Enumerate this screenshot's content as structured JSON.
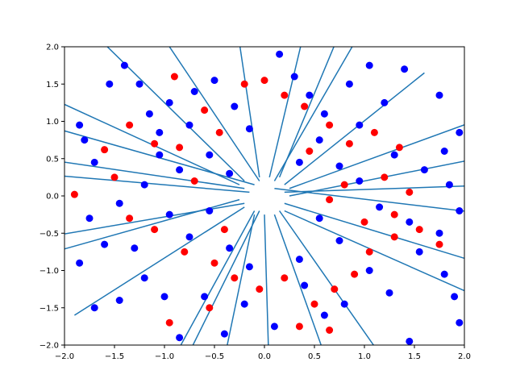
{
  "chart_data": {
    "type": "scatter",
    "title": "",
    "xlabel": "",
    "ylabel": "",
    "xlim": [
      -2.0,
      2.0
    ],
    "ylim": [
      -2.0,
      2.0
    ],
    "xticks": [
      -2.0,
      -1.5,
      -1.0,
      -0.5,
      0.0,
      0.5,
      1.0,
      1.5,
      2.0
    ],
    "yticks": [
      -2.0,
      -1.5,
      -1.0,
      -0.5,
      0.0,
      0.5,
      1.0,
      1.5,
      2.0
    ],
    "xtick_labels": [
      "−2.0",
      "−1.5",
      "−1.0",
      "−0.5",
      "0.0",
      "0.5",
      "1.0",
      "1.5",
      "2.0"
    ],
    "ytick_labels": [
      "−2.0",
      "−1.5",
      "−1.0",
      "−0.5",
      "0.0",
      "0.5",
      "1.0",
      "1.5",
      "2.0"
    ],
    "grid": false,
    "legend": "none",
    "colors": {
      "line": "#1f77b4",
      "blue_points": "#0000ff",
      "red_points": "#ff0000",
      "axes": "#000000"
    },
    "lines": [
      {
        "x1": -0.05,
        "y1": 0.2,
        "x2": -1.15,
        "y2": 2.4
      },
      {
        "x1": -0.1,
        "y1": 0.15,
        "x2": -2.6,
        "y2": 1.1
      },
      {
        "x1": 0.1,
        "y1": 0.1,
        "x2": 2.6,
        "y2": -0.3
      },
      {
        "x1": 0.2,
        "y1": 0.15,
        "x2": 1.6,
        "y2": 1.65
      },
      {
        "x1": -0.2,
        "y1": -0.1,
        "x2": -2.4,
        "y2": -0.6
      },
      {
        "x1": -0.1,
        "y1": -0.2,
        "x2": -1.0,
        "y2": -2.4
      },
      {
        "x1": 0.0,
        "y1": -0.25,
        "x2": 0.05,
        "y2": -2.5
      },
      {
        "x1": 0.15,
        "y1": -0.2,
        "x2": 1.3,
        "y2": -2.4
      },
      {
        "x1": 0.25,
        "y1": 0.0,
        "x2": 2.5,
        "y2": 0.6
      },
      {
        "x1": -0.15,
        "y1": 0.05,
        "x2": -2.3,
        "y2": 0.3
      },
      {
        "x1": 0.05,
        "y1": 0.25,
        "x2": 0.45,
        "y2": 2.5
      },
      {
        "x1": -0.2,
        "y1": 0.2,
        "x2": -1.8,
        "y2": 2.3
      },
      {
        "x1": 0.2,
        "y1": -0.1,
        "x2": 2.4,
        "y2": -1.0
      },
      {
        "x1": -0.2,
        "y1": -0.15,
        "x2": -1.9,
        "y2": -1.6
      },
      {
        "x1": 0.1,
        "y1": 0.2,
        "x2": 1.05,
        "y2": 2.4
      },
      {
        "x1": -0.05,
        "y1": 0.25,
        "x2": -0.3,
        "y2": 2.5
      },
      {
        "x1": 0.1,
        "y1": -0.25,
        "x2": 0.7,
        "y2": -2.5
      },
      {
        "x1": -0.25,
        "y1": -0.05,
        "x2": -2.5,
        "y2": -0.9
      },
      {
        "x1": 0.2,
        "y1": 0.05,
        "x2": 2.4,
        "y2": 0.15
      },
      {
        "x1": -0.2,
        "y1": 0.1,
        "x2": -2.5,
        "y2": 0.55
      },
      {
        "x1": 0.25,
        "y1": 0.1,
        "x2": 2.3,
        "y2": 1.1
      },
      {
        "x1": -0.1,
        "y1": -0.25,
        "x2": -0.45,
        "y2": -2.5
      },
      {
        "x1": 0.15,
        "y1": 0.25,
        "x2": 0.85,
        "y2": 2.5
      },
      {
        "x1": -0.25,
        "y1": 0.15,
        "x2": -2.2,
        "y2": 1.35
      },
      {
        "x1": 0.2,
        "y1": -0.2,
        "x2": 2.3,
        "y2": -1.45
      },
      {
        "x1": -0.05,
        "y1": -0.2,
        "x2": -0.9,
        "y2": -2.5
      }
    ],
    "blue_points": [
      {
        "x": -1.85,
        "y": 0.95
      },
      {
        "x": -1.8,
        "y": 0.75
      },
      {
        "x": -1.7,
        "y": 0.45
      },
      {
        "x": -1.55,
        "y": 1.5
      },
      {
        "x": -1.4,
        "y": 1.75
      },
      {
        "x": -1.25,
        "y": 1.5
      },
      {
        "x": -1.15,
        "y": 1.1
      },
      {
        "x": -1.05,
        "y": 0.85
      },
      {
        "x": -0.95,
        "y": 1.25
      },
      {
        "x": -0.85,
        "y": 0.35
      },
      {
        "x": -0.7,
        "y": 1.4
      },
      {
        "x": -0.5,
        "y": 1.55
      },
      {
        "x": -0.3,
        "y": 1.2
      },
      {
        "x": -0.15,
        "y": 0.9
      },
      {
        "x": 0.15,
        "y": 1.9
      },
      {
        "x": 0.3,
        "y": 1.6
      },
      {
        "x": 0.45,
        "y": 1.35
      },
      {
        "x": 0.6,
        "y": 1.1
      },
      {
        "x": 0.85,
        "y": 1.5
      },
      {
        "x": 1.05,
        "y": 1.75
      },
      {
        "x": 1.4,
        "y": 1.7
      },
      {
        "x": 1.75,
        "y": 1.35
      },
      {
        "x": 1.95,
        "y": 0.85
      },
      {
        "x": 1.8,
        "y": 0.6
      },
      {
        "x": 1.6,
        "y": 0.35
      },
      {
        "x": 1.85,
        "y": 0.15
      },
      {
        "x": 1.95,
        "y": -0.2
      },
      {
        "x": 1.75,
        "y": -0.5
      },
      {
        "x": 1.55,
        "y": -0.75
      },
      {
        "x": 1.8,
        "y": -1.05
      },
      {
        "x": 1.9,
        "y": -1.35
      },
      {
        "x": 1.95,
        "y": -1.7
      },
      {
        "x": 1.45,
        "y": -1.95
      },
      {
        "x": 1.25,
        "y": -1.3
      },
      {
        "x": 1.05,
        "y": -1.0
      },
      {
        "x": 0.8,
        "y": -1.45
      },
      {
        "x": 0.6,
        "y": -1.6
      },
      {
        "x": 0.4,
        "y": -1.2
      },
      {
        "x": 0.1,
        "y": -1.75
      },
      {
        "x": -0.2,
        "y": -1.45
      },
      {
        "x": -0.4,
        "y": -1.85
      },
      {
        "x": -0.6,
        "y": -1.35
      },
      {
        "x": -0.85,
        "y": -1.9
      },
      {
        "x": -1.0,
        "y": -1.35
      },
      {
        "x": -1.2,
        "y": -1.1
      },
      {
        "x": -1.45,
        "y": -1.4
      },
      {
        "x": -1.7,
        "y": -1.5
      },
      {
        "x": -1.85,
        "y": -0.9
      },
      {
        "x": -1.6,
        "y": -0.65
      },
      {
        "x": -1.75,
        "y": -0.3
      },
      {
        "x": -1.45,
        "y": -0.1
      },
      {
        "x": -1.2,
        "y": 0.15
      },
      {
        "x": -0.95,
        "y": -0.25
      },
      {
        "x": -0.75,
        "y": -0.55
      },
      {
        "x": -0.55,
        "y": -0.2
      },
      {
        "x": -0.35,
        "y": -0.7
      },
      {
        "x": -0.55,
        "y": 0.55
      },
      {
        "x": -0.35,
        "y": 0.3
      },
      {
        "x": 0.35,
        "y": 0.45
      },
      {
        "x": 0.55,
        "y": 0.75
      },
      {
        "x": 0.75,
        "y": 0.4
      },
      {
        "x": 0.95,
        "y": 0.2
      },
      {
        "x": 1.15,
        "y": -0.15
      },
      {
        "x": 1.3,
        "y": 0.55
      },
      {
        "x": 0.55,
        "y": -0.3
      },
      {
        "x": 0.75,
        "y": -0.6
      },
      {
        "x": 0.35,
        "y": -0.85
      },
      {
        "x": -0.15,
        "y": -0.95
      },
      {
        "x": 0.95,
        "y": 0.95
      },
      {
        "x": -0.75,
        "y": 0.95
      },
      {
        "x": 1.2,
        "y": 1.25
      },
      {
        "x": -1.3,
        "y": -0.7
      },
      {
        "x": 1.45,
        "y": -0.35
      },
      {
        "x": -1.05,
        "y": 0.55
      }
    ],
    "red_points": [
      {
        "x": -1.9,
        "y": 0.02
      },
      {
        "x": -1.6,
        "y": 0.62
      },
      {
        "x": -1.35,
        "y": 0.95
      },
      {
        "x": -1.1,
        "y": 0.7
      },
      {
        "x": -0.9,
        "y": 1.6
      },
      {
        "x": -0.6,
        "y": 1.15
      },
      {
        "x": -0.45,
        "y": 0.85
      },
      {
        "x": -0.2,
        "y": 1.5
      },
      {
        "x": 0.0,
        "y": 1.55
      },
      {
        "x": 0.2,
        "y": 1.35
      },
      {
        "x": 0.4,
        "y": 1.2
      },
      {
        "x": 0.65,
        "y": 0.95
      },
      {
        "x": 0.85,
        "y": 0.7
      },
      {
        "x": 1.1,
        "y": 0.85
      },
      {
        "x": 1.35,
        "y": 0.65
      },
      {
        "x": 1.2,
        "y": 0.25
      },
      {
        "x": 1.45,
        "y": 0.05
      },
      {
        "x": 1.3,
        "y": -0.25
      },
      {
        "x": 1.55,
        "y": -0.45
      },
      {
        "x": 1.75,
        "y": -0.65
      },
      {
        "x": 1.3,
        "y": -0.55
      },
      {
        "x": 1.05,
        "y": -0.75
      },
      {
        "x": 0.9,
        "y": -1.05
      },
      {
        "x": 0.7,
        "y": -1.25
      },
      {
        "x": 0.5,
        "y": -1.45
      },
      {
        "x": 0.35,
        "y": -1.75
      },
      {
        "x": 0.65,
        "y": -1.8
      },
      {
        "x": 0.2,
        "y": -1.1
      },
      {
        "x": -0.05,
        "y": -1.25
      },
      {
        "x": -0.3,
        "y": -1.1
      },
      {
        "x": -0.55,
        "y": -1.5
      },
      {
        "x": -0.5,
        "y": -0.9
      },
      {
        "x": -0.8,
        "y": -0.75
      },
      {
        "x": -0.95,
        "y": -1.7
      },
      {
        "x": -1.1,
        "y": -0.45
      },
      {
        "x": -1.35,
        "y": -0.3
      },
      {
        "x": -1.5,
        "y": 0.25
      },
      {
        "x": -0.7,
        "y": 0.2
      },
      {
        "x": -0.85,
        "y": 0.65
      },
      {
        "x": 0.8,
        "y": 0.15
      },
      {
        "x": 0.65,
        "y": -0.05
      },
      {
        "x": 1.0,
        "y": -0.35
      },
      {
        "x": -0.4,
        "y": -0.45
      },
      {
        "x": 0.45,
        "y": 0.6
      }
    ]
  }
}
